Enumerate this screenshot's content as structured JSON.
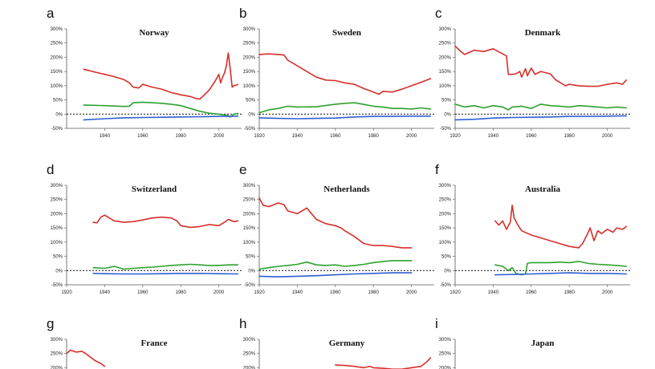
{
  "colors": {
    "red": "#d62f2a",
    "green": "#2ea12e",
    "blue": "#2f5fd0"
  },
  "chart_data": [
    {
      "panel": "a",
      "title": "Norway",
      "type": "line",
      "yticks": [
        "300%",
        "250%",
        "200%",
        "150%",
        "100%",
        "50%",
        "0%",
        "-50%"
      ],
      "ylim": [
        -50,
        300
      ],
      "xticks": [
        "1940",
        "1960",
        "1980",
        "2000"
      ],
      "xlim": [
        1920,
        2012
      ],
      "series": [
        {
          "color": "red",
          "x": [
            1929,
            1935,
            1940,
            1945,
            1950,
            1953,
            1955,
            1958,
            1960,
            1965,
            1970,
            1975,
            1980,
            1985,
            1988,
            1990,
            1992,
            1995,
            1998,
            2000,
            2001,
            2002,
            2003,
            2004,
            2005,
            2006,
            2007,
            2008,
            2010
          ],
          "y": [
            158,
            148,
            140,
            132,
            122,
            110,
            95,
            92,
            105,
            95,
            88,
            76,
            68,
            62,
            55,
            53,
            65,
            85,
            115,
            140,
            110,
            130,
            145,
            170,
            215,
            160,
            95,
            100,
            104
          ]
        },
        {
          "color": "green",
          "x": [
            1929,
            1940,
            1950,
            1953,
            1955,
            1960,
            1965,
            1970,
            1975,
            1980,
            1985,
            1990,
            1995,
            2000,
            2005,
            2006,
            2008,
            2010
          ],
          "y": [
            32,
            30,
            27,
            28,
            40,
            42,
            40,
            38,
            35,
            30,
            20,
            10,
            3,
            0,
            -5,
            -10,
            0,
            2
          ]
        },
        {
          "color": "blue",
          "x": [
            1929,
            1940,
            1950,
            1960,
            1970,
            1980,
            1990,
            2000,
            2010
          ],
          "y": [
            -20,
            -16,
            -13,
            -12,
            -11,
            -10,
            -9,
            -8,
            -7
          ]
        }
      ]
    },
    {
      "panel": "b",
      "title": "Sweden",
      "type": "line",
      "yticks": [
        "300%",
        "250%",
        "200%",
        "150%",
        "100%",
        "50%",
        "0%",
        "-50%"
      ],
      "ylim": [
        -50,
        300
      ],
      "xticks": [
        "1920",
        "1940",
        "1960",
        "1980",
        "2000"
      ],
      "xlim": [
        1920,
        2012
      ],
      "series": [
        {
          "color": "red",
          "x": [
            1920,
            1925,
            1930,
            1933,
            1935,
            1940,
            1945,
            1950,
            1955,
            1960,
            1965,
            1970,
            1975,
            1980,
            1983,
            1985,
            1990,
            1995,
            2000,
            2005,
            2010
          ],
          "y": [
            210,
            212,
            210,
            208,
            190,
            170,
            150,
            130,
            120,
            118,
            110,
            105,
            90,
            78,
            70,
            80,
            78,
            88,
            100,
            112,
            125
          ]
        },
        {
          "color": "green",
          "x": [
            1920,
            1925,
            1930,
            1935,
            1940,
            1950,
            1960,
            1965,
            1970,
            1975,
            1980,
            1985,
            1990,
            1995,
            2000,
            2005,
            2010
          ],
          "y": [
            5,
            15,
            20,
            28,
            25,
            26,
            35,
            38,
            40,
            34,
            28,
            25,
            20,
            20,
            18,
            22,
            18
          ]
        },
        {
          "color": "blue",
          "x": [
            1920,
            1930,
            1940,
            1950,
            1960,
            1970,
            1980,
            1990,
            2000,
            2010
          ],
          "y": [
            -13,
            -15,
            -16,
            -15,
            -14,
            -10,
            -8,
            -8,
            -7,
            -7
          ]
        }
      ]
    },
    {
      "panel": "c",
      "title": "Denmark",
      "type": "line",
      "yticks": [
        "300%",
        "250%",
        "200%",
        "150%",
        "100%",
        "50%",
        "0%",
        "-50%"
      ],
      "ylim": [
        -50,
        300
      ],
      "xticks": [
        "1920",
        "1940",
        "1960",
        "1980",
        "2000"
      ],
      "xlim": [
        1920,
        2012
      ],
      "series": [
        {
          "color": "red",
          "x": [
            1920,
            1923,
            1925,
            1930,
            1935,
            1940,
            1945,
            1947,
            1948,
            1950,
            1952,
            1954,
            1955,
            1957,
            1958,
            1960,
            1962,
            1965,
            1970,
            1973,
            1975,
            1978,
            1980,
            1985,
            1990,
            1995,
            2000,
            2005,
            2008,
            2010
          ],
          "y": [
            240,
            220,
            210,
            225,
            220,
            230,
            212,
            205,
            140,
            140,
            142,
            150,
            130,
            160,
            135,
            162,
            140,
            150,
            142,
            120,
            112,
            100,
            105,
            100,
            98,
            98,
            105,
            110,
            105,
            120
          ]
        },
        {
          "color": "green",
          "x": [
            1920,
            1925,
            1930,
            1935,
            1940,
            1945,
            1948,
            1950,
            1955,
            1960,
            1965,
            1970,
            1975,
            1980,
            1985,
            1990,
            1995,
            2000,
            2005,
            2010
          ],
          "y": [
            35,
            25,
            30,
            22,
            30,
            25,
            15,
            25,
            28,
            20,
            35,
            30,
            28,
            25,
            30,
            28,
            25,
            22,
            25,
            22
          ]
        },
        {
          "color": "blue",
          "x": [
            1920,
            1930,
            1940,
            1950,
            1960,
            1970,
            1980,
            1990,
            2000,
            2010
          ],
          "y": [
            -20,
            -18,
            -14,
            -12,
            -11,
            -10,
            -8,
            -8,
            -7,
            -6
          ]
        }
      ]
    },
    {
      "panel": "d",
      "title": "Switzerland",
      "type": "line",
      "yticks": [
        "300%",
        "250%",
        "200%",
        "150%",
        "100%",
        "50%",
        "0%",
        "-50%"
      ],
      "ylim": [
        -50,
        300
      ],
      "xticks": [
        "1920",
        "1940",
        "1960",
        "1980",
        "2000"
      ],
      "xlim": [
        1920,
        2012
      ],
      "series": [
        {
          "color": "red",
          "x": [
            1934,
            1936,
            1938,
            1940,
            1945,
            1950,
            1955,
            1960,
            1965,
            1970,
            1975,
            1978,
            1980,
            1985,
            1990,
            1995,
            2000,
            2003,
            2005,
            2008,
            2010
          ],
          "y": [
            170,
            168,
            188,
            195,
            175,
            170,
            172,
            178,
            185,
            188,
            185,
            175,
            158,
            152,
            155,
            162,
            158,
            170,
            180,
            172,
            175
          ]
        },
        {
          "color": "green",
          "x": [
            1934,
            1940,
            1945,
            1950,
            1955,
            1960,
            1965,
            1970,
            1975,
            1980,
            1985,
            1990,
            1995,
            2000,
            2005,
            2010
          ],
          "y": [
            10,
            8,
            15,
            5,
            8,
            10,
            12,
            15,
            18,
            20,
            22,
            20,
            18,
            18,
            20,
            20
          ]
        },
        {
          "color": "blue",
          "x": [
            1934,
            1940,
            1950,
            1960,
            1970,
            1980,
            1990,
            2000,
            2010
          ],
          "y": [
            -10,
            -11,
            -12,
            -12,
            -11,
            -10,
            -10,
            -11,
            -12
          ]
        }
      ]
    },
    {
      "panel": "e",
      "title": "Netherlands",
      "type": "line",
      "yticks": [
        "300%",
        "250%",
        "200%",
        "150%",
        "100%",
        "50%",
        "0%",
        "-50%"
      ],
      "ylim": [
        -50,
        300
      ],
      "xticks": [
        "1920",
        "1940",
        "1960",
        "1980",
        "2000"
      ],
      "xlim": [
        1920,
        2012
      ],
      "series": [
        {
          "color": "red",
          "x": [
            1920,
            1922,
            1925,
            1930,
            1933,
            1935,
            1940,
            1945,
            1950,
            1955,
            1960,
            1963,
            1965,
            1970,
            1975,
            1980,
            1985,
            1990,
            1995,
            2000
          ],
          "y": [
            255,
            230,
            225,
            238,
            232,
            210,
            200,
            220,
            180,
            165,
            158,
            150,
            140,
            120,
            95,
            88,
            88,
            85,
            80,
            80
          ]
        },
        {
          "color": "green",
          "x": [
            1920,
            1925,
            1930,
            1935,
            1940,
            1945,
            1950,
            1955,
            1960,
            1965,
            1970,
            1975,
            1980,
            1985,
            1990,
            1995,
            2000
          ],
          "y": [
            5,
            10,
            15,
            18,
            22,
            30,
            20,
            18,
            20,
            15,
            18,
            22,
            28,
            32,
            35,
            35,
            35
          ]
        },
        {
          "color": "blue",
          "x": [
            1920,
            1930,
            1940,
            1950,
            1960,
            1970,
            1980,
            1990,
            2000
          ],
          "y": [
            -20,
            -22,
            -20,
            -18,
            -15,
            -12,
            -10,
            -8,
            -8
          ]
        }
      ]
    },
    {
      "panel": "f",
      "title": "Australia",
      "type": "line",
      "yticks": [
        "300%",
        "250%",
        "200%",
        "150%",
        "100%",
        "50%",
        "0%",
        "-50%"
      ],
      "ylim": [
        -50,
        300
      ],
      "xticks": [
        "1920",
        "1940",
        "1960",
        "1980",
        "2000"
      ],
      "xlim": [
        1920,
        2012
      ],
      "series": [
        {
          "color": "red",
          "x": [
            1941,
            1943,
            1945,
            1947,
            1949,
            1950,
            1951,
            1953,
            1955,
            1960,
            1965,
            1970,
            1975,
            1980,
            1985,
            1987,
            1990,
            1991,
            1993,
            1995,
            1997,
            2000,
            2003,
            2005,
            2008,
            2010
          ],
          "y": [
            175,
            160,
            175,
            145,
            170,
            230,
            185,
            160,
            140,
            125,
            115,
            105,
            95,
            85,
            80,
            95,
            135,
            150,
            105,
            140,
            130,
            145,
            135,
            150,
            145,
            155
          ]
        },
        {
          "color": "green",
          "x": [
            1941,
            1945,
            1948,
            1950,
            1952,
            1955,
            1957,
            1958,
            1960,
            1965,
            1970,
            1975,
            1980,
            1985,
            1990,
            1995,
            2000,
            2005,
            2010
          ],
          "y": [
            20,
            15,
            0,
            10,
            -10,
            -15,
            -12,
            25,
            28,
            28,
            28,
            30,
            28,
            32,
            25,
            22,
            20,
            18,
            15
          ]
        },
        {
          "color": "blue",
          "x": [
            1941,
            1950,
            1960,
            1970,
            1980,
            1990,
            2000,
            2010
          ],
          "y": [
            -15,
            -14,
            -12,
            -10,
            -8,
            -10,
            -10,
            -12
          ]
        }
      ]
    },
    {
      "panel": "g",
      "title": "France",
      "type": "line",
      "yticks": [
        "300%",
        "250%",
        "200%"
      ],
      "ylim": [
        -50,
        300
      ],
      "xticks": [],
      "xlim": [
        1920,
        2012
      ],
      "series": [
        {
          "color": "red",
          "x": [
            1920,
            1922,
            1925,
            1928,
            1930,
            1932,
            1935,
            1938,
            1940
          ],
          "y": [
            250,
            262,
            255,
            258,
            250,
            240,
            225,
            215,
            205
          ]
        }
      ]
    },
    {
      "panel": "h",
      "title": "Germany",
      "type": "line",
      "yticks": [
        "300%",
        "250%",
        "200%"
      ],
      "ylim": [
        -50,
        300
      ],
      "xticks": [],
      "xlim": [
        1920,
        2012
      ],
      "series": [
        {
          "color": "red",
          "x": [
            1960,
            1965,
            1970,
            1975,
            1978,
            1980,
            1985,
            1990,
            1995,
            2000,
            2005,
            2008,
            2010
          ],
          "y": [
            210,
            208,
            205,
            200,
            205,
            200,
            198,
            195,
            195,
            200,
            205,
            220,
            235
          ]
        }
      ]
    },
    {
      "panel": "i",
      "title": "Japan",
      "type": "line",
      "yticks": [
        "300%",
        "250%",
        "200%"
      ],
      "ylim": [
        -50,
        300
      ],
      "xticks": [],
      "xlim": [
        1920,
        2012
      ],
      "series": []
    }
  ]
}
